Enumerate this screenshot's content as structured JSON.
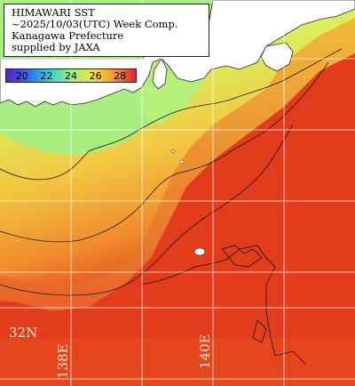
{
  "caption": {
    "line1": "HIMAWARI SST",
    "line2": "~2025/10/03(UTC) Week Comp.",
    "line3": "Kanagawa Prefecture",
    "line4": "supplied by JAXA"
  },
  "legend": {
    "ticks": [
      "20",
      "22",
      "24",
      "26",
      "28"
    ],
    "colors": [
      "#5a1fc8",
      "#2f6cf0",
      "#2ad0d8",
      "#9af07a",
      "#f0e040",
      "#f59a2a",
      "#e0203a"
    ]
  },
  "coordinates": {
    "lat_label": "32N",
    "lon_labels": [
      "138E",
      "140E"
    ]
  },
  "palette": {
    "land": "#ffffff",
    "coast_cool": "#b8f078",
    "mid": "#f2d040",
    "warm": "#e85a22",
    "ocean_hot": "#e03a1e"
  }
}
